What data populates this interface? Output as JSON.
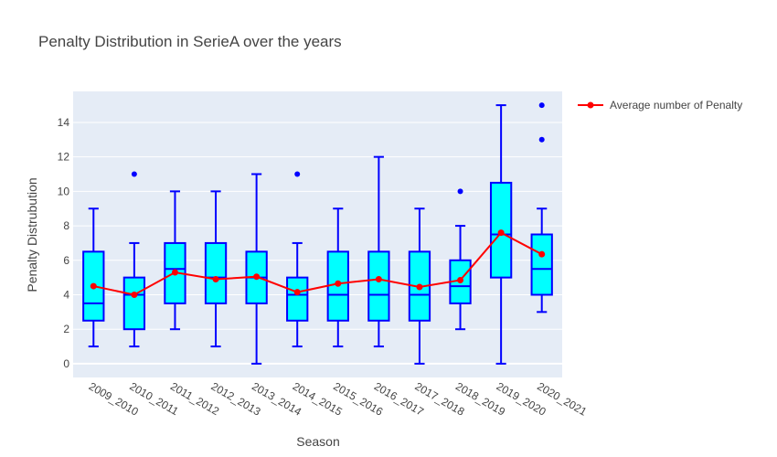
{
  "chart_data": {
    "type": "box",
    "title": "Penalty Distribution in SerieA over the years",
    "xlabel": "Season",
    "ylabel": "Penalty Distrubution",
    "categories": [
      "2009_2010",
      "2010_2011",
      "2011_2012",
      "2012_2013",
      "2013_2014",
      "2014_2015",
      "2015_2016",
      "2016_2017",
      "2017_2018",
      "2018_2019",
      "2019_2020",
      "2020_2021"
    ],
    "ylim": [
      -0.8,
      15.8
    ],
    "yticks": [
      0,
      2,
      4,
      6,
      8,
      10,
      12,
      14
    ],
    "grid": true,
    "legend_position": "top-right",
    "colors": {
      "box_fill": "#00ffff",
      "box_line": "#0000ff",
      "line": "#ff0000",
      "plot_bg": "#e5ecf6"
    },
    "boxes": [
      {
        "min": 1,
        "q1": 2.5,
        "median": 3.5,
        "q3": 6.5,
        "max": 9,
        "outliers": []
      },
      {
        "min": 1,
        "q1": 2,
        "median": 4,
        "q3": 5,
        "max": 7,
        "outliers": [
          11
        ]
      },
      {
        "min": 2,
        "q1": 3.5,
        "median": 5.5,
        "q3": 7,
        "max": 10,
        "outliers": []
      },
      {
        "min": 1,
        "q1": 3.5,
        "median": 5,
        "q3": 7,
        "max": 10,
        "outliers": []
      },
      {
        "min": 0,
        "q1": 3.5,
        "median": 5,
        "q3": 6.5,
        "max": 11,
        "outliers": []
      },
      {
        "min": 1,
        "q1": 2.5,
        "median": 4,
        "q3": 5,
        "max": 7,
        "outliers": [
          11
        ]
      },
      {
        "min": 1,
        "q1": 2.5,
        "median": 4,
        "q3": 6.5,
        "max": 9,
        "outliers": []
      },
      {
        "min": 1,
        "q1": 2.5,
        "median": 4,
        "q3": 6.5,
        "max": 12,
        "outliers": []
      },
      {
        "min": 0,
        "q1": 2.5,
        "median": 4,
        "q3": 6.5,
        "max": 9,
        "outliers": []
      },
      {
        "min": 2,
        "q1": 3.5,
        "median": 4.5,
        "q3": 6,
        "max": 8,
        "outliers": [
          10
        ]
      },
      {
        "min": 0,
        "q1": 5,
        "median": 7.5,
        "q3": 10.5,
        "max": 15,
        "outliers": []
      },
      {
        "min": 3,
        "q1": 4,
        "median": 5.5,
        "q3": 7.5,
        "max": 9,
        "outliers": [
          13,
          15
        ]
      }
    ],
    "series": [
      {
        "name": "Average number of Penalty",
        "type": "line",
        "values": [
          4.5,
          4.0,
          5.3,
          4.9,
          5.05,
          4.15,
          4.65,
          4.9,
          4.45,
          4.85,
          7.6,
          6.35
        ]
      }
    ]
  }
}
